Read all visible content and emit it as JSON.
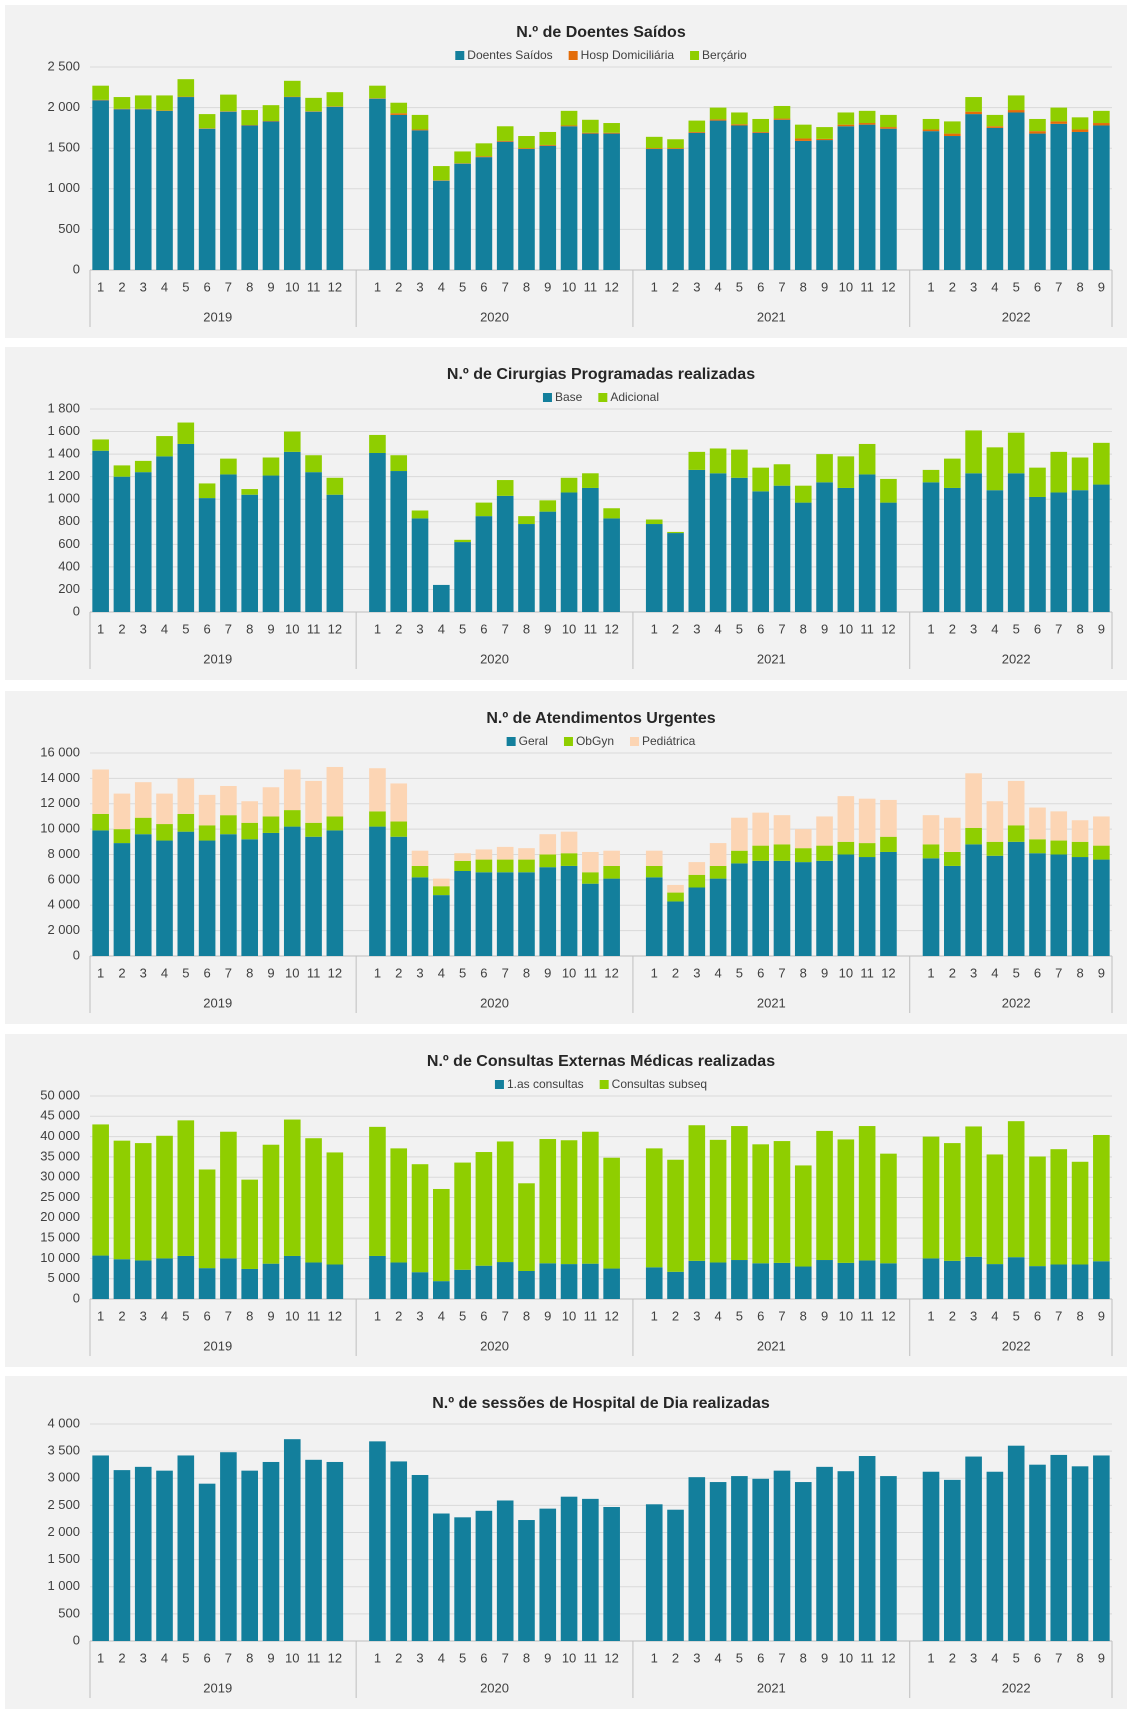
{
  "chart_data": [
    {
      "type": "bar",
      "stacked": true,
      "title": "N.º de Doentes Saídos",
      "legend": "top",
      "grid": true,
      "groups": [
        {
          "label": "2019",
          "categories": [
            1,
            2,
            3,
            4,
            5,
            6,
            7,
            8,
            9,
            10,
            11,
            12
          ]
        },
        {
          "label": "2020",
          "categories": [
            1,
            2,
            3,
            4,
            5,
            6,
            7,
            8,
            9,
            10,
            11,
            12
          ]
        },
        {
          "label": "2021",
          "categories": [
            1,
            2,
            3,
            4,
            5,
            6,
            7,
            8,
            9,
            10,
            11,
            12
          ]
        },
        {
          "label": "2022",
          "categories": [
            1,
            2,
            3,
            4,
            5,
            6,
            7,
            8,
            9
          ]
        }
      ],
      "series": [
        {
          "name": "Doentes Saídos",
          "color": "#137f9c",
          "values": [
            2090,
            1980,
            1980,
            1960,
            2130,
            1740,
            1950,
            1780,
            1830,
            2130,
            1950,
            2010,
            2110,
            1910,
            1720,
            1100,
            1310,
            1390,
            1580,
            1490,
            1530,
            1770,
            1680,
            1680,
            1490,
            1490,
            1690,
            1840,
            1780,
            1690,
            1850,
            1590,
            1600,
            1770,
            1790,
            1740,
            1710,
            1650,
            1920,
            1750,
            1940,
            1680,
            1800,
            1700,
            1780
          ]
        },
        {
          "name": "Hosp Domiciliária",
          "color": "#e36c09",
          "values": [
            5,
            5,
            5,
            5,
            5,
            5,
            5,
            5,
            5,
            5,
            5,
            5,
            5,
            20,
            10,
            5,
            5,
            10,
            10,
            10,
            10,
            10,
            10,
            10,
            10,
            10,
            10,
            15,
            15,
            10,
            15,
            30,
            15,
            20,
            20,
            20,
            20,
            30,
            30,
            20,
            30,
            30,
            30,
            30,
            30
          ]
        },
        {
          "name": "Berçário",
          "color": "#8fce00",
          "values": [
            175,
            145,
            165,
            185,
            215,
            175,
            205,
            185,
            195,
            195,
            165,
            175,
            155,
            130,
            180,
            175,
            145,
            160,
            180,
            150,
            160,
            180,
            160,
            120,
            140,
            110,
            140,
            145,
            145,
            160,
            155,
            170,
            145,
            150,
            150,
            150,
            130,
            150,
            180,
            140,
            180,
            150,
            170,
            150,
            150
          ]
        }
      ],
      "ylim": [
        0,
        2500
      ],
      "yticks": [
        0,
        500,
        {
          "value": 1000,
          "label": "1 000"
        },
        {
          "value": 1500,
          "label": "1 500"
        },
        {
          "value": 2000,
          "label": "2 000"
        },
        {
          "value": 2500,
          "label": "2 500"
        }
      ]
    },
    {
      "type": "bar",
      "stacked": true,
      "title": "N.º de Cirurgias Programadas realizadas",
      "legend": "top",
      "grid": true,
      "groups": [
        {
          "label": "2019",
          "categories": [
            1,
            2,
            3,
            4,
            5,
            6,
            7,
            8,
            9,
            10,
            11,
            12
          ]
        },
        {
          "label": "2020",
          "categories": [
            1,
            2,
            3,
            4,
            5,
            6,
            7,
            8,
            9,
            10,
            11,
            12
          ]
        },
        {
          "label": "2021",
          "categories": [
            1,
            2,
            3,
            4,
            5,
            6,
            7,
            8,
            9,
            10,
            11,
            12
          ]
        },
        {
          "label": "2022",
          "categories": [
            1,
            2,
            3,
            4,
            5,
            6,
            7,
            8,
            9
          ]
        }
      ],
      "series": [
        {
          "name": "Base",
          "color": "#137f9c",
          "values": [
            1430,
            1200,
            1240,
            1380,
            1490,
            1010,
            1220,
            1040,
            1210,
            1420,
            1240,
            1040,
            1410,
            1250,
            830,
            240,
            620,
            850,
            1030,
            780,
            890,
            1060,
            1100,
            830,
            780,
            700,
            1260,
            1230,
            1190,
            1070,
            1120,
            970,
            1150,
            1100,
            1220,
            970,
            1150,
            1100,
            1230,
            1080,
            1230,
            1020,
            1060,
            1080,
            1130
          ]
        },
        {
          "name": "Adicional",
          "color": "#8fce00",
          "values": [
            100,
            100,
            100,
            180,
            190,
            130,
            140,
            50,
            160,
            180,
            150,
            150,
            160,
            140,
            70,
            0,
            20,
            120,
            140,
            70,
            100,
            130,
            130,
            90,
            40,
            10,
            160,
            220,
            250,
            210,
            190,
            150,
            250,
            280,
            270,
            210,
            110,
            260,
            380,
            380,
            360,
            260,
            360,
            290,
            370
          ]
        }
      ],
      "ylim": [
        0,
        1800
      ],
      "yticks": [
        0,
        200,
        400,
        600,
        800,
        {
          "value": 1000,
          "label": "1 000"
        },
        {
          "value": 1200,
          "label": "1 200"
        },
        {
          "value": 1400,
          "label": "1 400"
        },
        {
          "value": 1600,
          "label": "1 600"
        },
        {
          "value": 1800,
          "label": "1 800"
        }
      ]
    },
    {
      "type": "bar",
      "stacked": true,
      "title": "N.º de Atendimentos Urgentes",
      "legend": "top",
      "grid": true,
      "groups": [
        {
          "label": "2019",
          "categories": [
            1,
            2,
            3,
            4,
            5,
            6,
            7,
            8,
            9,
            10,
            11,
            12
          ]
        },
        {
          "label": "2020",
          "categories": [
            1,
            2,
            3,
            4,
            5,
            6,
            7,
            8,
            9,
            10,
            11,
            12
          ]
        },
        {
          "label": "2021",
          "categories": [
            1,
            2,
            3,
            4,
            5,
            6,
            7,
            8,
            9,
            10,
            11,
            12
          ]
        },
        {
          "label": "2022",
          "categories": [
            1,
            2,
            3,
            4,
            5,
            6,
            7,
            8,
            9
          ]
        }
      ],
      "series": [
        {
          "name": "Geral",
          "color": "#137f9c",
          "values": [
            9900,
            8900,
            9600,
            9100,
            9800,
            9100,
            9600,
            9200,
            9700,
            10200,
            9400,
            9900,
            10200,
            9400,
            6200,
            4800,
            6700,
            6600,
            6600,
            6600,
            7000,
            7100,
            5700,
            6100,
            6200,
            4300,
            5400,
            6100,
            7300,
            7500,
            7500,
            7400,
            7500,
            8000,
            7800,
            8200,
            7700,
            7100,
            8800,
            7900,
            9000,
            8100,
            8000,
            7800,
            7600
          ]
        },
        {
          "name": "ObGyn",
          "color": "#8fce00",
          "values": [
            1300,
            1100,
            1300,
            1300,
            1400,
            1200,
            1500,
            1300,
            1300,
            1300,
            1100,
            1100,
            1200,
            1200,
            900,
            700,
            800,
            1000,
            1000,
            1000,
            1000,
            1000,
            900,
            1000,
            900,
            700,
            1000,
            1000,
            1000,
            1200,
            1300,
            1100,
            1200,
            1000,
            1100,
            1200,
            1100,
            1100,
            1300,
            1100,
            1300,
            1100,
            1100,
            1200,
            1100
          ]
        },
        {
          "name": "Pediátrica",
          "color": "#fcd5b4",
          "values": [
            3500,
            2800,
            2800,
            2400,
            2800,
            2400,
            2300,
            1700,
            2300,
            3200,
            3300,
            3900,
            3400,
            3000,
            1200,
            600,
            600,
            800,
            1000,
            900,
            1600,
            1700,
            1600,
            1200,
            1200,
            600,
            1000,
            1800,
            2600,
            2600,
            2300,
            1500,
            2300,
            3600,
            3500,
            2900,
            2300,
            2700,
            4300,
            3200,
            3500,
            2500,
            2300,
            1700,
            2300
          ]
        }
      ],
      "ylim": [
        0,
        16000
      ],
      "yticks": [
        0,
        {
          "value": 2000,
          "label": "2 000"
        },
        {
          "value": 4000,
          "label": "4 000"
        },
        {
          "value": 6000,
          "label": "6 000"
        },
        {
          "value": 8000,
          "label": "8 000"
        },
        {
          "value": 10000,
          "label": "10 000"
        },
        {
          "value": 12000,
          "label": "12 000"
        },
        {
          "value": 14000,
          "label": "14 000"
        },
        {
          "value": 16000,
          "label": "16 000"
        }
      ]
    },
    {
      "type": "bar",
      "stacked": true,
      "title": "N.º de Consultas Externas Médicas realizadas",
      "legend": "top",
      "grid": true,
      "groups": [
        {
          "label": "2019",
          "categories": [
            1,
            2,
            3,
            4,
            5,
            6,
            7,
            8,
            9,
            10,
            11,
            12
          ]
        },
        {
          "label": "2020",
          "categories": [
            1,
            2,
            3,
            4,
            5,
            6,
            7,
            8,
            9,
            10,
            11,
            12
          ]
        },
        {
          "label": "2021",
          "categories": [
            1,
            2,
            3,
            4,
            5,
            6,
            7,
            8,
            9,
            10,
            11,
            12
          ]
        },
        {
          "label": "2022",
          "categories": [
            1,
            2,
            3,
            4,
            5,
            6,
            7,
            8,
            9
          ]
        }
      ],
      "series": [
        {
          "name": "1.as consultas",
          "color": "#137f9c",
          "values": [
            10700,
            9800,
            9500,
            10000,
            10600,
            7600,
            10000,
            7400,
            8700,
            10600,
            9000,
            8500,
            10600,
            9000,
            6600,
            4400,
            7200,
            8200,
            9100,
            6900,
            8800,
            8600,
            8700,
            7500,
            7800,
            6700,
            9400,
            9000,
            9600,
            8800,
            8900,
            8000,
            9600,
            8900,
            9500,
            8800,
            10000,
            9400,
            10400,
            8600,
            10300,
            8100,
            8500,
            8500,
            9300
          ]
        },
        {
          "name": "Consultas subseq",
          "color": "#8fce00",
          "values": [
            32300,
            29200,
            28900,
            30200,
            33400,
            24300,
            31200,
            22000,
            29300,
            33600,
            30600,
            27600,
            31800,
            28100,
            26600,
            22700,
            26400,
            28000,
            29700,
            21600,
            30600,
            30500,
            32500,
            27300,
            29300,
            27600,
            33400,
            30200,
            33000,
            29300,
            30000,
            24900,
            31800,
            30400,
            33100,
            27000,
            30000,
            29000,
            32100,
            27000,
            33500,
            27000,
            28400,
            25300,
            31100
          ]
        }
      ],
      "ylim": [
        0,
        50000
      ],
      "yticks": [
        0,
        {
          "value": 5000,
          "label": "5 000"
        },
        {
          "value": 10000,
          "label": "10 000"
        },
        {
          "value": 15000,
          "label": "15 000"
        },
        {
          "value": 20000,
          "label": "20 000"
        },
        {
          "value": 25000,
          "label": "25 000"
        },
        {
          "value": 30000,
          "label": "30 000"
        },
        {
          "value": 35000,
          "label": "35 000"
        },
        {
          "value": 40000,
          "label": "40 000"
        },
        {
          "value": 45000,
          "label": "45 000"
        },
        {
          "value": 50000,
          "label": "50 000"
        }
      ]
    },
    {
      "type": "bar",
      "title": "N.º de sessões de Hospital de Dia realizadas",
      "grid": true,
      "groups": [
        {
          "label": "2019",
          "categories": [
            1,
            2,
            3,
            4,
            5,
            6,
            7,
            8,
            9,
            10,
            11,
            12
          ]
        },
        {
          "label": "2020",
          "categories": [
            1,
            2,
            3,
            4,
            5,
            6,
            7,
            8,
            9,
            10,
            11,
            12
          ]
        },
        {
          "label": "2021",
          "categories": [
            1,
            2,
            3,
            4,
            5,
            6,
            7,
            8,
            9,
            10,
            11,
            12
          ]
        },
        {
          "label": "2022",
          "categories": [
            1,
            2,
            3,
            4,
            5,
            6,
            7,
            8,
            9
          ]
        }
      ],
      "color": "#137f9c",
      "values": [
        3420,
        3150,
        3210,
        3140,
        3420,
        2900,
        3480,
        3140,
        3300,
        3720,
        3340,
        3300,
        3680,
        3310,
        3060,
        2350,
        2280,
        2400,
        2590,
        2230,
        2440,
        2660,
        2620,
        2470,
        2520,
        2420,
        3020,
        2930,
        3040,
        2990,
        3140,
        2930,
        3210,
        3130,
        3410,
        3040,
        3120,
        2970,
        3400,
        3120,
        3600,
        3250,
        3430,
        3220,
        3420
      ],
      "ylim": [
        0,
        4000
      ],
      "yticks": [
        0,
        500,
        {
          "value": 1000,
          "label": "1 000"
        },
        {
          "value": 1500,
          "label": "1 500"
        },
        {
          "value": 2000,
          "label": "2 000"
        },
        {
          "value": 2500,
          "label": "2 500"
        },
        {
          "value": 3000,
          "label": "3 000"
        },
        {
          "value": 3500,
          "label": "3 500"
        },
        {
          "value": 4000,
          "label": "4 000"
        }
      ]
    }
  ]
}
